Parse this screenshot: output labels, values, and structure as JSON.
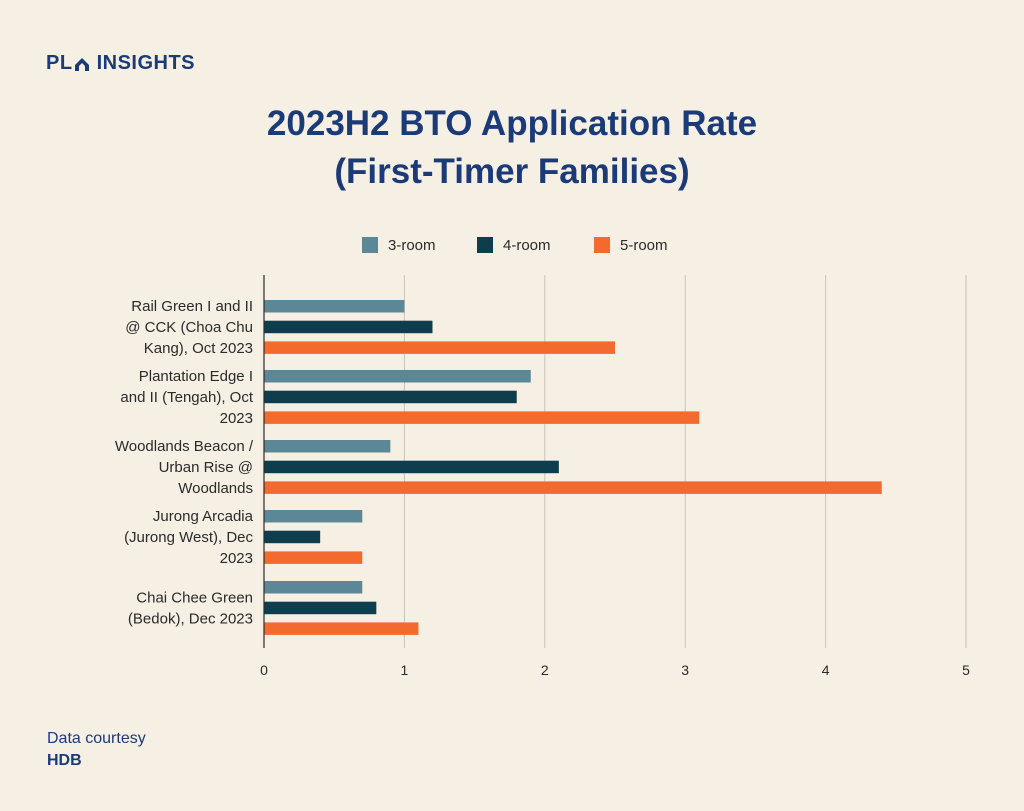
{
  "brand": {
    "prefix": "PL",
    "name": "INSIGHTS",
    "color": "#1b3a78"
  },
  "title": {
    "line1": "2023H2 BTO Application Rate",
    "line2": "(First-Timer Families)"
  },
  "credit": {
    "label": "Data courtesy",
    "source": "HDB"
  },
  "chart_data": {
    "type": "bar",
    "orientation": "horizontal",
    "title": "2023H2 BTO Application Rate (First-Timer Families)",
    "xlabel": "",
    "ylabel": "",
    "xlim": [
      0,
      5
    ],
    "xticks": [
      0,
      1,
      2,
      3,
      4,
      5
    ],
    "grid": true,
    "legend_position": "top-center",
    "categories": [
      [
        "Rail Green I and II",
        "@ CCK (Choa Chu",
        "Kang), Oct 2023"
      ],
      [
        "Plantation Edge I",
        "and II (Tengah), Oct",
        "2023"
      ],
      [
        "Woodlands Beacon /",
        "Urban Rise @",
        "Woodlands"
      ],
      [
        "Jurong Arcadia",
        "(Jurong West), Dec",
        "2023"
      ],
      [
        "Chai Chee Green",
        "(Bedok), Dec 2023"
      ]
    ],
    "series": [
      {
        "name": "3-room",
        "color": "#5b8797",
        "values": [
          1.0,
          1.9,
          0.9,
          0.7,
          0.7
        ]
      },
      {
        "name": "4-room",
        "color": "#0e3e4e",
        "values": [
          1.2,
          1.8,
          2.1,
          0.4,
          0.8
        ]
      },
      {
        "name": "5-room",
        "color": "#f26a2e",
        "values": [
          2.5,
          3.1,
          4.4,
          0.7,
          1.1
        ]
      }
    ]
  }
}
